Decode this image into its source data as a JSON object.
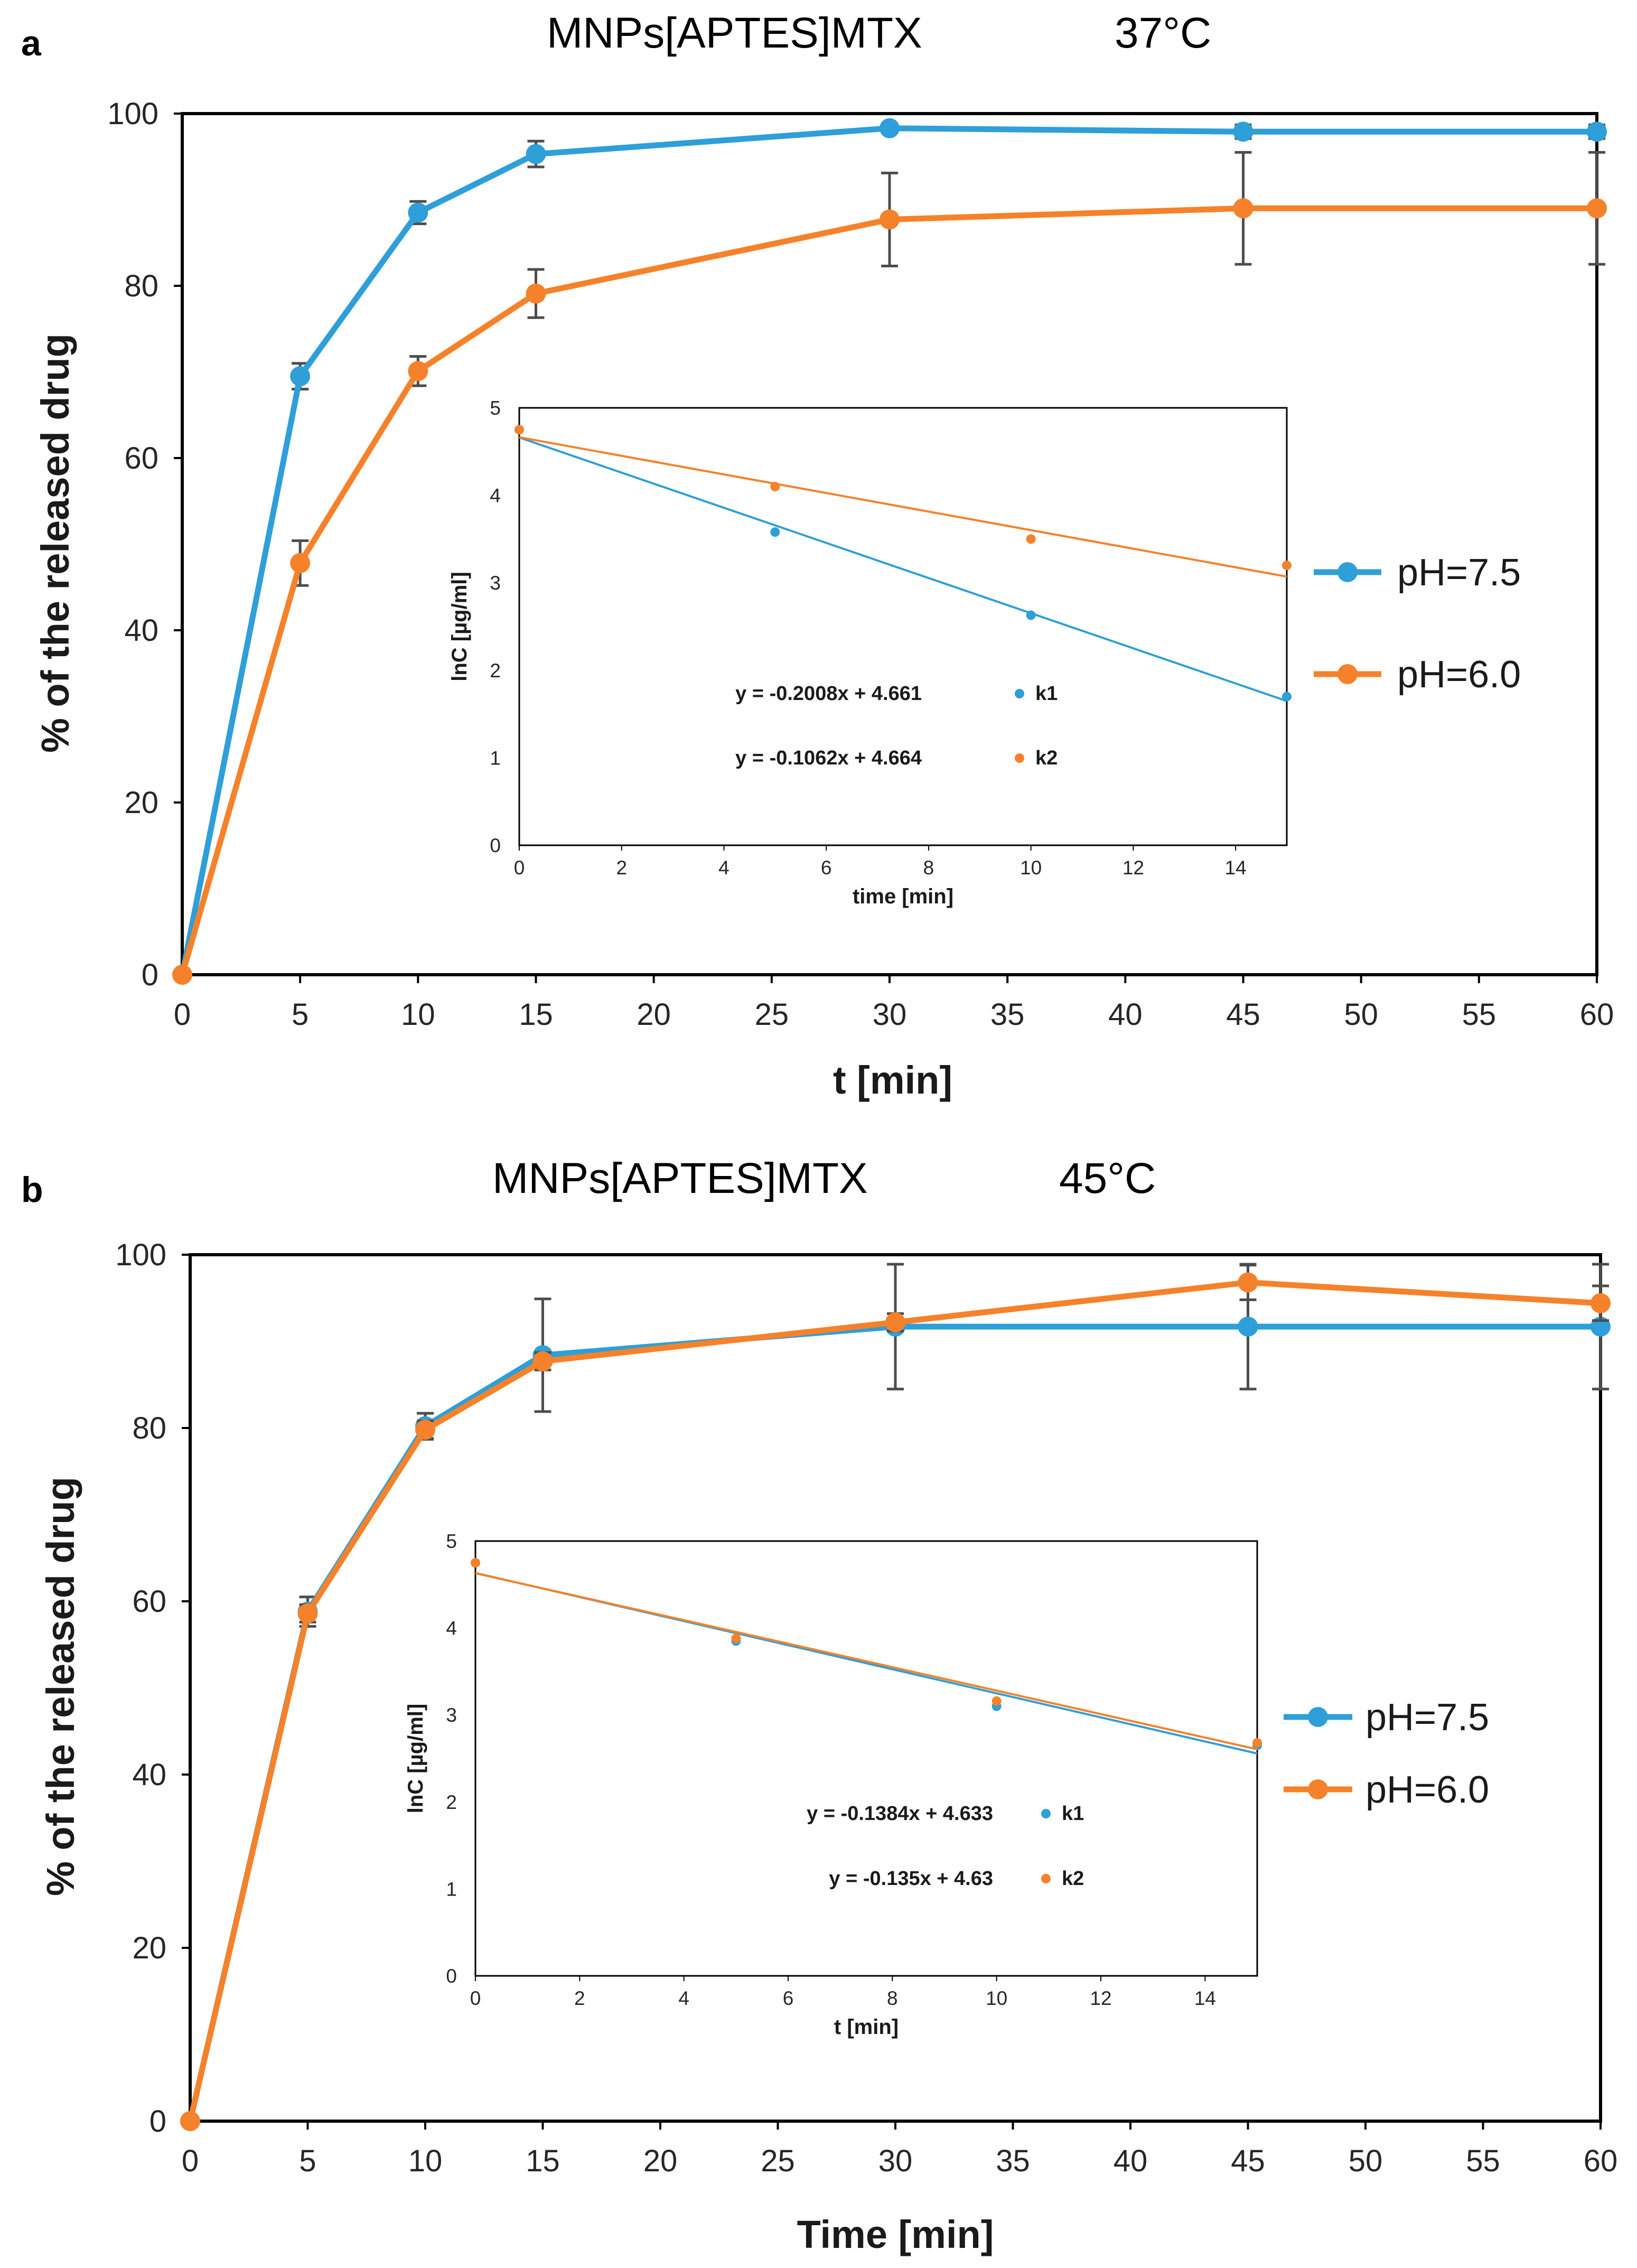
{
  "colors": {
    "ph75": "#2E9FD8",
    "ph60": "#F5822A",
    "axis": "#000000",
    "errorbar": "#4d4d4d"
  },
  "chart_data": [
    {
      "panel": "a",
      "type": "line",
      "title": {
        "compound": "MNPs[APTES]MTX",
        "temperature": "37°C"
      },
      "xlabel": "t [min]",
      "ylabel": "% of the released drug",
      "xlim": [
        0,
        60
      ],
      "ylim": [
        0,
        100
      ],
      "xticks": [
        0,
        5,
        10,
        15,
        20,
        25,
        30,
        35,
        40,
        45,
        50,
        55,
        60
      ],
      "yticks": [
        0,
        20,
        40,
        60,
        80,
        100
      ],
      "legend_position": "right",
      "series": [
        {
          "name": "pH=7.5",
          "color": "#2E9FD8",
          "x": [
            0,
            5,
            10,
            15,
            30,
            45,
            60
          ],
          "y": [
            0,
            69.5,
            88.5,
            95.3,
            98.3,
            97.9,
            97.9
          ],
          "err": [
            0,
            1.5,
            1.3,
            1.5,
            0.5,
            0.8,
            0.8
          ]
        },
        {
          "name": "pH=6.0",
          "color": "#F5822A",
          "x": [
            0,
            5,
            10,
            15,
            30,
            45,
            60
          ],
          "y": [
            0,
            47.8,
            70.1,
            79.1,
            87.7,
            89.0,
            89.0
          ],
          "err": [
            0,
            2.6,
            1.7,
            2.8,
            5.4,
            6.5,
            6.5
          ]
        }
      ],
      "inset": {
        "xlabel": "time [min]",
        "ylabel": "lnC [µg/ml]",
        "xlim": [
          0,
          15
        ],
        "ylim": [
          0,
          5
        ],
        "xticks": [
          0,
          2,
          4,
          6,
          8,
          10,
          12,
          14
        ],
        "yticks": [
          0,
          1,
          2,
          3,
          4,
          5
        ],
        "series": [
          {
            "label": "k1",
            "equation": "y = -0.2008x + 4.661",
            "slope": -0.2008,
            "intercept": 4.661,
            "color": "#2E9FD8",
            "x": [
              0,
              5,
              10,
              15
            ],
            "y": [
              4.75,
              3.58,
              2.63,
              1.7
            ]
          },
          {
            "label": "k2",
            "equation": "y = -0.1062x + 4.664",
            "slope": -0.1062,
            "intercept": 4.664,
            "color": "#F5822A",
            "x": [
              0,
              5,
              10,
              15
            ],
            "y": [
              4.75,
              4.1,
              3.5,
              3.2
            ]
          }
        ]
      }
    },
    {
      "panel": "b",
      "type": "line",
      "title": {
        "compound": "MNPs[APTES]MTX",
        "temperature": "45°C"
      },
      "xlabel": "Time [min]",
      "ylabel": "% of the released drug",
      "xlim": [
        0,
        60
      ],
      "ylim": [
        0,
        100
      ],
      "xticks": [
        0,
        5,
        10,
        15,
        20,
        25,
        30,
        35,
        40,
        45,
        50,
        55,
        60
      ],
      "yticks": [
        0,
        20,
        40,
        60,
        80,
        100
      ],
      "legend_position": "right",
      "series": [
        {
          "name": "pH=7.5",
          "color": "#2E9FD8",
          "x": [
            0,
            5,
            10,
            15,
            30,
            45,
            60
          ],
          "y": [
            0,
            58.8,
            80.2,
            88.4,
            91.7,
            91.7,
            91.7
          ],
          "err": [
            0,
            1.7,
            1.5,
            6.5,
            7.2,
            7.2,
            7.2
          ]
        },
        {
          "name": "pH=6.0",
          "color": "#F5822A",
          "x": [
            0,
            5,
            10,
            15,
            30,
            45,
            60
          ],
          "y": [
            0,
            58.6,
            79.8,
            87.7,
            92.2,
            96.8,
            94.4
          ],
          "err": [
            0,
            1.0,
            1.0,
            1.0,
            1.0,
            2.0,
            2.0
          ]
        }
      ],
      "inset": {
        "xlabel": "t [min]",
        "ylabel": "lnC [µg/ml]",
        "xlim": [
          0,
          15
        ],
        "ylim": [
          0,
          5
        ],
        "xticks": [
          0,
          2,
          4,
          6,
          8,
          10,
          12,
          14
        ],
        "yticks": [
          0,
          1,
          2,
          3,
          4,
          5
        ],
        "series": [
          {
            "label": "k1",
            "equation": "y = -0.1384x + 4.633",
            "slope": -0.1384,
            "intercept": 4.633,
            "color": "#2E9FD8",
            "x": [
              0,
              5,
              10,
              15
            ],
            "y": [
              4.75,
              3.85,
              3.1,
              2.65
            ]
          },
          {
            "label": "k2",
            "equation": "y = -0.135x + 4.63",
            "slope": -0.135,
            "intercept": 4.63,
            "color": "#F5822A",
            "x": [
              0,
              5,
              10,
              15
            ],
            "y": [
              4.75,
              3.88,
              3.16,
              2.68
            ]
          }
        ]
      }
    }
  ]
}
